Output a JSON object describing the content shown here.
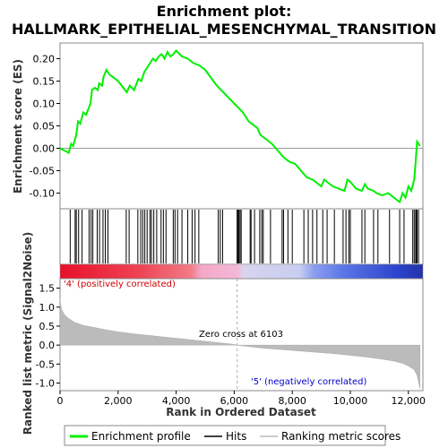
{
  "chart_data": {
    "type": "line",
    "title_line1": "Enrichment plot:",
    "title_line2": "HALLMARK_EPITHELIAL_MESENCHYMAL_TRANSITION",
    "es_ylabel": "Enrichment score (ES)",
    "metric_ylabel": "Ranked list metric (Signal2Noise)",
    "xlabel": "Rank in Ordered Dataset",
    "xlim": [
      0,
      12500
    ],
    "es_ylim": [
      -0.135,
      0.235
    ],
    "es_yticks": [
      0.2,
      0.15,
      0.1,
      0.05,
      0.0,
      -0.05,
      -0.1
    ],
    "es_ytick_labels": [
      "0.20",
      "0.15",
      "0.10",
      "0.05",
      "0.00",
      "-0.05",
      "-0.10"
    ],
    "metric_ylim": [
      -1.2,
      1.75
    ],
    "metric_yticks": [
      1.5,
      1.0,
      0.5,
      0.0,
      -0.5,
      -1.0
    ],
    "metric_ytick_labels": [
      "1.5",
      "1.0",
      "0.5",
      "0.0",
      "-0.5",
      "-1.0"
    ],
    "xticks": [
      0,
      2000,
      4000,
      6000,
      8000,
      10000,
      12000
    ],
    "xtick_labels": [
      "0",
      "2,000",
      "4,000",
      "6,000",
      "8,000",
      "10,000",
      "12,000"
    ],
    "zero_cross": 6103,
    "zero_cross_label": "Zero cross at 6103",
    "positive_label": "'4' (positively correlated)",
    "negative_label": "'5' (negatively correlated)",
    "legend": {
      "enrichment": "Enrichment profile",
      "hits": "Hits",
      "ranking": "Ranking metric scores"
    },
    "colors": {
      "enrichment_line": "#00ee00",
      "hits": "#000000",
      "ranking_fill": "#bbbbbb",
      "positive_text": "#cc0000",
      "negative_text": "#0000cc",
      "zero_line": "#aaaaaa"
    },
    "es_curve": {
      "x": [
        0,
        300,
        380,
        450,
        560,
        620,
        700,
        800,
        900,
        1050,
        1100,
        1200,
        1300,
        1350,
        1450,
        1500,
        1600,
        1700,
        2000,
        2300,
        2400,
        2550,
        2700,
        2800,
        2900,
        3000,
        3100,
        3200,
        3300,
        3400,
        3500,
        3600,
        3700,
        3800,
        3900,
        4000,
        4200,
        4400,
        4600,
        4800,
        5000,
        5400,
        5700,
        6000,
        6300,
        6500,
        6800,
        6900,
        7000,
        7300,
        7500,
        7700,
        7900,
        8100,
        8300,
        8500,
        8700,
        8800,
        8900,
        9000,
        9100,
        9200,
        9400,
        9600,
        9800,
        9900,
        10000,
        10200,
        10400,
        10500,
        10600,
        10800,
        10900,
        11100,
        11300,
        11500,
        11700,
        11800,
        11900,
        12000,
        12100,
        12200,
        12250,
        12300,
        12400
      ],
      "y": [
        0.0,
        -0.01,
        0.01,
        0.005,
        0.03,
        0.06,
        0.055,
        0.08,
        0.075,
        0.1,
        0.13,
        0.135,
        0.13,
        0.145,
        0.14,
        0.16,
        0.175,
        0.165,
        0.15,
        0.125,
        0.14,
        0.13,
        0.155,
        0.15,
        0.17,
        0.18,
        0.19,
        0.2,
        0.195,
        0.205,
        0.21,
        0.2,
        0.215,
        0.205,
        0.21,
        0.218,
        0.205,
        0.2,
        0.19,
        0.185,
        0.175,
        0.14,
        0.12,
        0.1,
        0.08,
        0.06,
        0.045,
        0.03,
        0.025,
        0.01,
        -0.005,
        -0.02,
        -0.03,
        -0.035,
        -0.05,
        -0.065,
        -0.07,
        -0.075,
        -0.08,
        -0.085,
        -0.07,
        -0.075,
        -0.085,
        -0.09,
        -0.095,
        -0.07,
        -0.075,
        -0.09,
        -0.095,
        -0.08,
        -0.09,
        -0.095,
        -0.1,
        -0.105,
        -0.1,
        -0.11,
        -0.12,
        -0.1,
        -0.11,
        -0.085,
        -0.095,
        -0.07,
        -0.03,
        0.015,
        0.005
      ]
    },
    "hits": [
      350,
      520,
      560,
      640,
      760,
      1000,
      1070,
      1130,
      1280,
      1360,
      1480,
      1560,
      1650,
      2280,
      2380,
      2680,
      2780,
      2850,
      2920,
      3000,
      3100,
      3150,
      3230,
      3330,
      3480,
      3560,
      3650,
      3900,
      3960,
      4050,
      4200,
      4400,
      4550,
      4650,
      4780,
      5450,
      5520,
      5600,
      6100,
      6130,
      6160,
      6200,
      6240,
      6550,
      6580,
      6700,
      6880,
      6950,
      7000,
      7250,
      7650,
      7700,
      7850,
      8000,
      8400,
      8550,
      8700,
      8850,
      9050,
      9200,
      9450,
      9750,
      9850,
      9950,
      10000,
      10400,
      10500,
      10800,
      10950,
      11350,
      11700,
      11850,
      12150,
      12200,
      12250,
      12280,
      12300,
      12350
    ],
    "metric_curve": {
      "x": [
        0,
        50,
        150,
        300,
        500,
        800,
        1200,
        1600,
        2000,
        2500,
        3000,
        3500,
        4000,
        4500,
        5000,
        5500,
        6000,
        6103,
        6500,
        7000,
        7500,
        8000,
        8500,
        9000,
        9500,
        10000,
        10500,
        11000,
        11500,
        11800,
        12000,
        12200,
        12300,
        12400
      ],
      "y": [
        1.2,
        0.95,
        0.8,
        0.7,
        0.6,
        0.52,
        0.46,
        0.4,
        0.35,
        0.3,
        0.26,
        0.22,
        0.18,
        0.14,
        0.1,
        0.06,
        0.02,
        0.0,
        -0.04,
        -0.08,
        -0.11,
        -0.14,
        -0.17,
        -0.2,
        -0.23,
        -0.27,
        -0.31,
        -0.36,
        -0.42,
        -0.48,
        -0.55,
        -0.65,
        -0.8,
        -1.15
      ]
    },
    "heat_bar_stops": [
      {
        "at": 0.0,
        "color": "#e8102a"
      },
      {
        "at": 0.22,
        "color": "#ee4455"
      },
      {
        "at": 0.36,
        "color": "#f27b87"
      },
      {
        "at": 0.39,
        "color": "#f3a8c8"
      },
      {
        "at": 0.49,
        "color": "#f5b8d8"
      },
      {
        "at": 0.505,
        "color": "#d8d4ee"
      },
      {
        "at": 0.66,
        "color": "#c8cdf0"
      },
      {
        "at": 0.7,
        "color": "#8b9ef0"
      },
      {
        "at": 0.78,
        "color": "#5a77e6"
      },
      {
        "at": 0.93,
        "color": "#2c44cc"
      },
      {
        "at": 1.0,
        "color": "#2233aa"
      }
    ]
  }
}
